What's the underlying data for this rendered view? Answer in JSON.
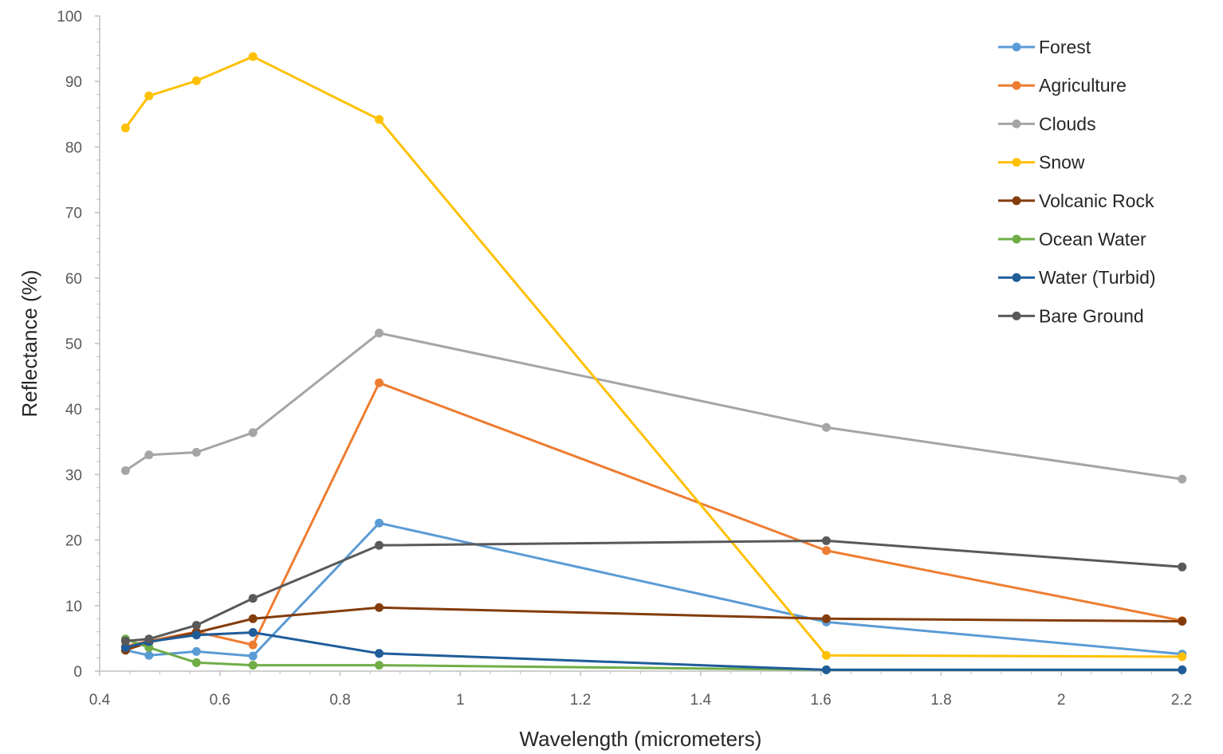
{
  "chart_data": {
    "type": "line",
    "title": "",
    "xlabel": "Wavelength (micrometers)",
    "ylabel": "Reflectance (%)",
    "xlim": [
      0.4,
      2.2
    ],
    "ylim": [
      0,
      100
    ],
    "xticks": [
      0.4,
      0.6,
      0.8,
      1,
      1.2,
      1.4,
      1.6,
      1.8,
      2,
      2.2
    ],
    "xtick_labels": [
      "0.4",
      "0.6",
      "0.8",
      "1",
      "1.2",
      "1.4",
      "1.6",
      "1.8",
      "2",
      "2.2"
    ],
    "yticks": [
      0,
      10,
      20,
      30,
      40,
      50,
      60,
      70,
      80,
      90,
      100
    ],
    "ytick_labels": [
      "0",
      "10",
      "20",
      "30",
      "40",
      "50",
      "60",
      "70",
      "80",
      "90",
      "100"
    ],
    "grid": false,
    "legend_position": "top-right",
    "x": [
      0.443,
      0.482,
      0.561,
      0.655,
      0.865,
      1.609,
      2.201
    ],
    "series": [
      {
        "name": "Forest",
        "color": "#5B9BD5",
        "values": [
          3.2,
          2.4,
          3.0,
          2.3,
          22.6,
          7.5,
          2.6
        ]
      },
      {
        "name": "Agriculture",
        "color": "#ED7D31",
        "values": [
          3.8,
          4.6,
          6.0,
          4.0,
          44.0,
          18.4,
          7.7
        ]
      },
      {
        "name": "Clouds",
        "color": "#A5A5A5",
        "values": [
          30.6,
          33.0,
          33.4,
          36.4,
          51.6,
          37.2,
          29.3
        ]
      },
      {
        "name": "Snow",
        "color": "#FFC000",
        "values": [
          82.9,
          87.8,
          90.1,
          93.8,
          84.2,
          2.4,
          2.2
        ]
      },
      {
        "name": "Volcanic Rock",
        "color": "#843C0C",
        "values": [
          3.2,
          4.4,
          5.9,
          8.0,
          9.7,
          8.0,
          7.6
        ]
      },
      {
        "name": "Ocean Water",
        "color": "#70AD47",
        "values": [
          4.9,
          3.6,
          1.3,
          0.9,
          0.9,
          0.2,
          0.2
        ]
      },
      {
        "name": "Water (Turbid)",
        "color": "#1F5C99",
        "values": [
          3.6,
          4.5,
          5.5,
          5.9,
          2.7,
          0.2,
          0.2
        ]
      },
      {
        "name": "Bare Ground",
        "color": "#595959",
        "values": [
          4.6,
          4.9,
          7.0,
          11.1,
          19.2,
          19.9,
          15.9
        ]
      }
    ]
  }
}
